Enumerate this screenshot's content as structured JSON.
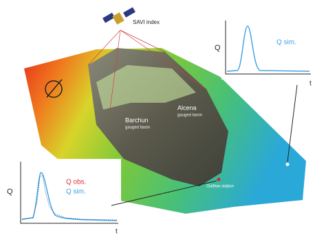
{
  "satellite": {
    "label": "SAVI index"
  },
  "top_graph": {
    "y_label": "Q",
    "legend": "Q sim.",
    "x_label": "t"
  },
  "bottom_graph": {
    "y_label": "Q",
    "legend_obs": "Q obs.",
    "legend_sim": "Q sim.",
    "x_label": "t"
  },
  "basins": [
    {
      "name": "Barchun",
      "subtitle": "gauged basin"
    },
    {
      "name": "Alcena",
      "subtitle": "gauged basin"
    }
  ],
  "station": "Outflow station"
}
